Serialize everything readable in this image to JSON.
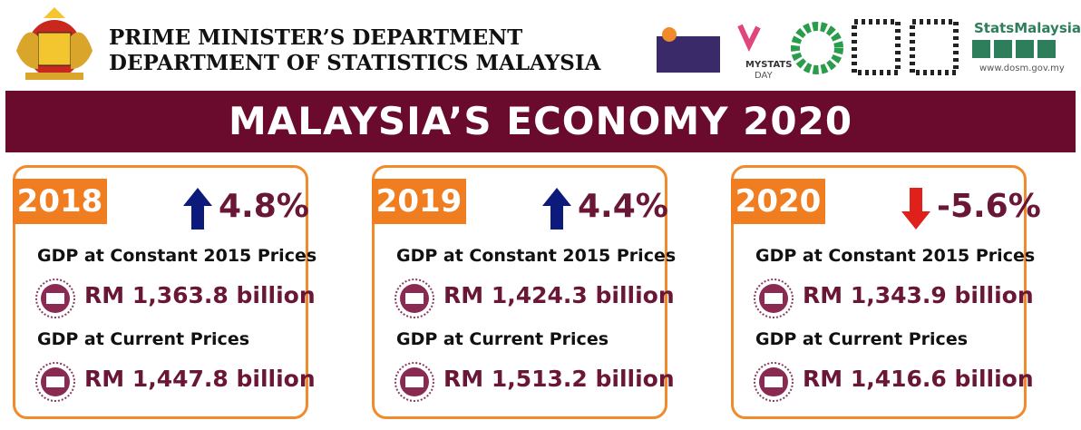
{
  "header": {
    "lines": [
      "PRIME MINISTER’S DEPARTMENT",
      "DEPARTMENT OF STATISTICS MALAYSIA"
    ],
    "logos": {
      "mystats": "MYSTATS",
      "day": "DAY",
      "brand": "StatsMalaysia",
      "url": "www.dosm.gov.my"
    }
  },
  "banner": {
    "title": "MALAYSIA’S ECONOMY 2020"
  },
  "cards": [
    {
      "year": "2018",
      "direction": "up",
      "change": "4.8%",
      "items": [
        {
          "label": "GDP at Constant 2015 Prices",
          "value": "RM 1,363.8 billion"
        },
        {
          "label": "GDP at Current Prices",
          "value": "RM 1,447.8 billion"
        }
      ]
    },
    {
      "year": "2019",
      "direction": "up",
      "change": "4.4%",
      "items": [
        {
          "label": "GDP at Constant 2015 Prices",
          "value": "RM 1,424.3 billion"
        },
        {
          "label": "GDP at Current Prices",
          "value": "RM 1,513.2 billion"
        }
      ]
    },
    {
      "year": "2020",
      "direction": "down",
      "change": "-5.6%",
      "items": [
        {
          "label": "GDP at Constant 2015 Prices",
          "value": "RM 1,343.9 billion"
        },
        {
          "label": "GDP at Current Prices",
          "value": "RM 1,416.6 billion"
        }
      ]
    }
  ]
}
